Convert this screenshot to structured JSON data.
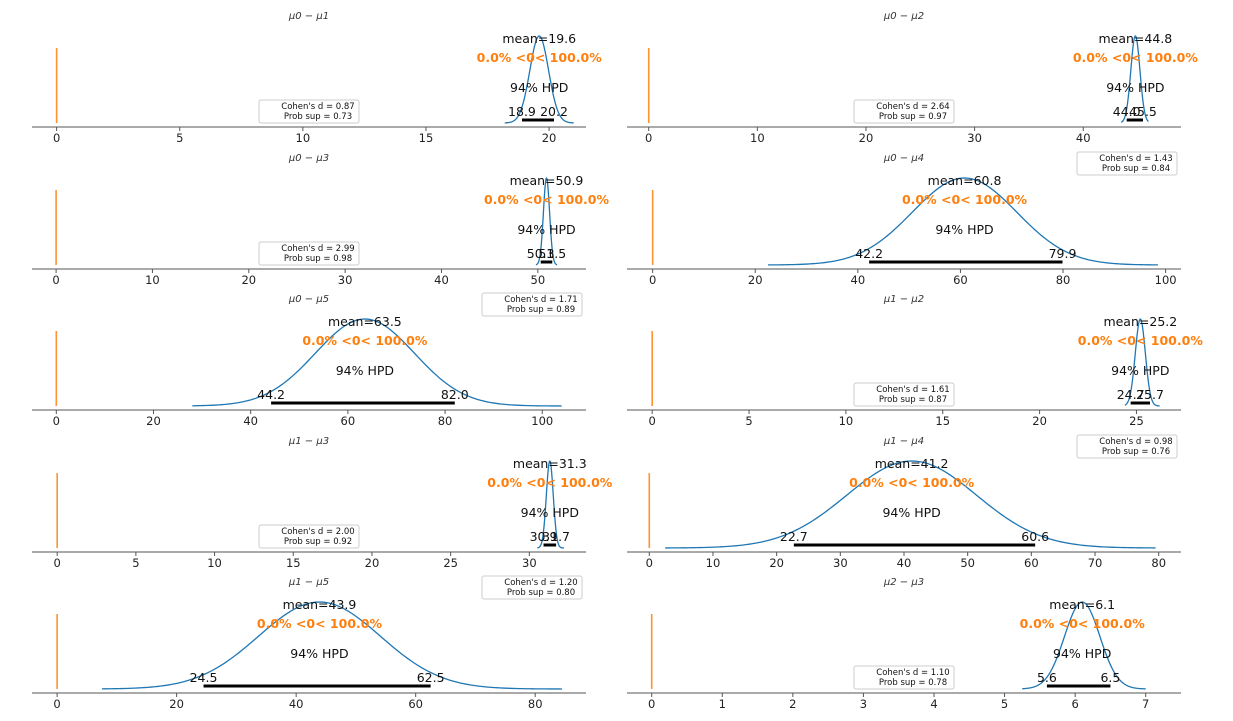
{
  "figure": {
    "title": ""
  },
  "colors": {
    "curve": "#1f77b4",
    "ref": "#ff7f0e",
    "hpd": "#000000",
    "axis": "#555555"
  },
  "hpd_label": "94% HPD",
  "ref_value": 0,
  "chart_data": [
    {
      "type": "line",
      "title": "μ0 − μ1",
      "xlim": [
        -1,
        21.5
      ],
      "ticks": [
        0,
        5,
        10,
        15,
        20
      ],
      "mean": 19.6,
      "mean_label": "mean=19.6",
      "ref_label": "0.0% <0< 100.0%",
      "hpd": [
        18.9,
        20.2
      ],
      "hpd_labels": [
        "18.9",
        "20.2"
      ],
      "sd": 0.38,
      "curve_range": [
        18.2,
        21.0
      ],
      "legend_lines": [
        "Cohen's d = 0.87",
        "Prob sup = 0.73"
      ],
      "legend_loc": "left",
      "label_offsets": [
        0,
        0
      ]
    },
    {
      "type": "line",
      "title": "μ0 − μ2",
      "xlim": [
        -2,
        49
      ],
      "ticks": [
        0,
        10,
        20,
        30,
        40
      ],
      "mean": 44.8,
      "mean_label": "mean=44.8",
      "ref_label": "0.0% <0< 100.0%",
      "hpd": [
        44.0,
        45.5
      ],
      "hpd_labels": [
        "44.0",
        "45.5"
      ],
      "sd": 0.42,
      "curve_range": [
        43.5,
        46.0
      ],
      "legend_lines": [
        "Cohen's d = 2.64",
        "Prob sup = 0.97"
      ],
      "legend_loc": "left",
      "label_offsets": [
        0,
        0
      ]
    },
    {
      "type": "line",
      "title": "μ0 − μ3",
      "xlim": [
        -2.5,
        55
      ],
      "ticks": [
        0,
        10,
        20,
        30,
        40,
        50
      ],
      "mean": 50.9,
      "mean_label": "mean=50.9",
      "ref_label": "0.0% <0< 100.0%",
      "hpd": [
        50.3,
        51.5
      ],
      "hpd_labels": [
        "50.3",
        "51.5"
      ],
      "sd": 0.32,
      "curve_range": [
        49.8,
        52.0
      ],
      "legend_lines": [
        "Cohen's d = 2.99",
        "Prob sup = 0.98"
      ],
      "legend_loc": "left",
      "label_offsets": [
        0,
        0
      ]
    },
    {
      "type": "line",
      "title": "μ0 − μ4",
      "xlim": [
        -5,
        103
      ],
      "ticks": [
        0,
        20,
        40,
        60,
        80,
        100
      ],
      "mean": 60.8,
      "mean_label": "mean=60.8",
      "ref_label": "0.0% <0< 100.0%",
      "hpd": [
        42.2,
        79.9
      ],
      "hpd_labels": [
        "42.2",
        "79.9"
      ],
      "sd": 10.2,
      "curve_range": [
        22.5,
        98.5
      ],
      "legend_lines": [
        "Cohen's d = 1.43",
        "Prob sup = 0.84"
      ],
      "legend_loc": "right",
      "label_offsets": [
        0,
        0
      ]
    },
    {
      "type": "line",
      "title": "μ0 − μ5",
      "xlim": [
        -5,
        109
      ],
      "ticks": [
        0,
        20,
        40,
        60,
        80,
        100
      ],
      "mean": 63.5,
      "mean_label": "mean=63.5",
      "ref_label": "0.0% <0< 100.0%",
      "hpd": [
        44.2,
        82.0
      ],
      "hpd_labels": [
        "44.2",
        "82.0"
      ],
      "sd": 10.2,
      "curve_range": [
        28.0,
        104.0
      ],
      "legend_lines": [
        "Cohen's d = 1.71",
        "Prob sup = 0.89"
      ],
      "legend_loc": "right",
      "label_offsets": [
        0,
        0
      ]
    },
    {
      "type": "line",
      "title": "μ1 − μ2",
      "xlim": [
        -1.3,
        27.3
      ],
      "ticks": [
        0,
        5,
        10,
        15,
        20,
        25
      ],
      "mean": 25.2,
      "mean_label": "mean=25.2",
      "ref_label": "0.0% <0< 100.0%",
      "hpd": [
        24.7,
        25.7
      ],
      "hpd_labels": [
        "24.7",
        "25.7"
      ],
      "sd": 0.26,
      "curve_range": [
        24.4,
        26.2
      ],
      "legend_lines": [
        "Cohen's d = 1.61",
        "Prob sup = 0.87"
      ],
      "legend_loc": "left",
      "label_offsets": [
        0,
        0
      ]
    },
    {
      "type": "line",
      "title": "μ1 − μ3",
      "xlim": [
        -1.6,
        33.6
      ],
      "ticks": [
        0,
        5,
        10,
        15,
        20,
        25,
        30
      ],
      "mean": 31.3,
      "mean_label": "mean=31.3",
      "ref_label": "0.0% <0< 100.0%",
      "hpd": [
        30.9,
        31.7
      ],
      "hpd_labels": [
        "30.9",
        "31.7"
      ],
      "sd": 0.22,
      "curve_range": [
        30.5,
        32.2
      ],
      "legend_lines": [
        "Cohen's d = 2.00",
        "Prob sup = 0.92"
      ],
      "legend_loc": "left",
      "label_offsets": [
        0,
        0
      ]
    },
    {
      "type": "line",
      "title": "μ1 − μ4",
      "xlim": [
        -3.5,
        83.5
      ],
      "ticks": [
        0,
        10,
        20,
        30,
        40,
        50,
        60,
        70,
        80
      ],
      "mean": 41.2,
      "mean_label": "mean=41.2",
      "ref_label": "0.0% <0< 100.0%",
      "hpd": [
        22.7,
        60.6
      ],
      "hpd_labels": [
        "22.7",
        "60.6"
      ],
      "sd": 10.2,
      "curve_range": [
        2.5,
        79.5
      ],
      "legend_lines": [
        "Cohen's d = 0.98",
        "Prob sup = 0.76"
      ],
      "legend_loc": "right",
      "label_offsets": [
        0,
        0
      ]
    },
    {
      "type": "line",
      "title": "μ1 − μ5",
      "xlim": [
        -4.2,
        88.5
      ],
      "ticks": [
        0,
        20,
        40,
        60,
        80
      ],
      "mean": 43.9,
      "mean_label": "mean=43.9",
      "ref_label": "0.0% <0< 100.0%",
      "hpd": [
        24.5,
        62.5
      ],
      "hpd_labels": [
        "24.5",
        "62.5"
      ],
      "sd": 10.2,
      "curve_range": [
        7.5,
        84.5
      ],
      "legend_lines": [
        "Cohen's d = 1.20",
        "Prob sup = 0.80"
      ],
      "legend_loc": "right",
      "label_offsets": [
        0,
        0
      ]
    },
    {
      "type": "line",
      "title": "μ2 − μ3",
      "xlim": [
        -0.35,
        7.5
      ],
      "ticks": [
        0,
        1,
        2,
        3,
        4,
        5,
        6,
        7
      ],
      "mean": 6.1,
      "mean_label": "mean=6.1",
      "ref_label": "0.0% <0< 100.0%",
      "hpd": [
        5.6,
        6.5
      ],
      "hpd_labels": [
        "5.6",
        "6.5"
      ],
      "sd": 0.25,
      "curve_range": [
        5.25,
        7.0
      ],
      "legend_lines": [
        "Cohen's d = 1.10",
        "Prob sup = 0.78"
      ],
      "legend_loc": "left",
      "label_offsets": [
        0,
        0
      ]
    }
  ]
}
